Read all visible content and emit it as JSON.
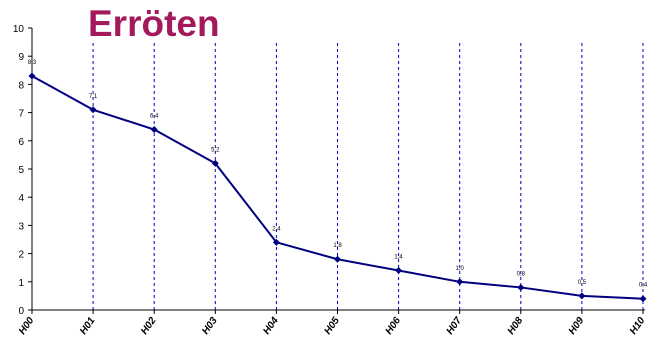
{
  "colors": {
    "title": "#a3195b",
    "series": "#000080",
    "gridline": "#0000cc",
    "axis": "#000000",
    "background": "#ffffff"
  },
  "chart_data": {
    "type": "line",
    "title": "Erröten",
    "xlabel": "",
    "ylabel": "",
    "categories": [
      "H00",
      "H01",
      "H02",
      "H03",
      "H04",
      "H05",
      "H06",
      "H07",
      "H08",
      "H09",
      "H10"
    ],
    "series": [
      {
        "values": [
          8.3,
          7.1,
          6.4,
          5.2,
          2.4,
          1.8,
          1.4,
          1.0,
          0.8,
          0.5,
          0.4
        ],
        "labels": [
          "8,3",
          "7,1",
          "6,4",
          "5,2",
          "2,4",
          "1,8",
          "1,4",
          "1,0",
          "0,8",
          "0,5",
          "0,4"
        ]
      }
    ],
    "ylim": [
      0,
      10
    ],
    "yticks": [
      "0",
      "1",
      "2",
      "3",
      "4",
      "5",
      "6",
      "7",
      "8",
      "9",
      "10"
    ],
    "grid": "vertical dashed lines at each category",
    "legend": "none"
  }
}
